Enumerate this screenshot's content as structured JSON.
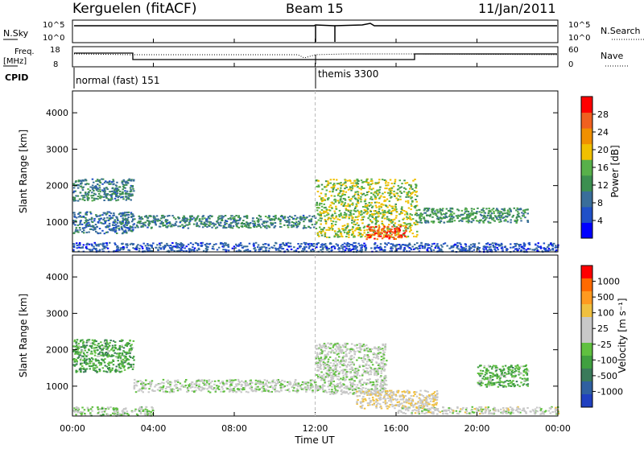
{
  "header": {
    "title": "Kerguelen (fitACF)",
    "beam": "Beam 15",
    "date": "11/Jan/2011"
  },
  "panels": {
    "nsky": {
      "label": "N.Sky",
      "top_tick": "10^5",
      "bottom_tick": "10^0",
      "right_label": "N.Search",
      "right_top_tick": "10^5",
      "right_bottom_tick": "10^0"
    },
    "freq": {
      "label_line1": "Freq.",
      "label_line2": "[MHz]",
      "top_tick": "18",
      "bottom_tick": "8",
      "right_label": "Nave",
      "right_top_tick": "60",
      "right_bottom_tick": "0"
    },
    "cpid": {
      "label": "CPID",
      "mode1": "normal (fast) 151",
      "mode2": "themis 3300"
    }
  },
  "colors": {
    "power_scale": [
      "#0000ff",
      "#2050c8",
      "#3a6e9a",
      "#3c8f50",
      "#58b04a",
      "#f0c000",
      "#f09000",
      "#f06020",
      "#ff0000"
    ],
    "velocity_scale": [
      "#ff0000",
      "#ff6a00",
      "#ff9a20",
      "#f0c040",
      "#c8c8c8",
      "#c8c8c8",
      "#60c040",
      "#40a040",
      "#3a7a5a",
      "#3060a0",
      "#2040c0"
    ]
  },
  "chart_data": [
    {
      "type": "heatmap",
      "title": "",
      "xlabel": "Time UT",
      "ylabel": "Slant Range [km]",
      "xlim": [
        "00:00",
        "24:00"
      ],
      "ylim": [
        180,
        4600
      ],
      "x_ticks": [
        "00:00",
        "04:00",
        "08:00",
        "12:00",
        "16:00",
        "20:00",
        "00:00"
      ],
      "y_ticks": [
        1000,
        2000,
        3000,
        4000
      ],
      "colorbar": {
        "label": "Power [dB]",
        "ticks": [
          "4",
          "8",
          "12",
          "16",
          "20",
          "24",
          "28"
        ],
        "range": [
          0,
          30
        ]
      },
      "echo_regions": [
        {
          "t_start": 0.0,
          "t_end": 3.0,
          "r_min": 1600,
          "r_max": 2200,
          "value": 10
        },
        {
          "t_start": 0.0,
          "t_end": 3.0,
          "r_min": 700,
          "r_max": 1300,
          "value": 8
        },
        {
          "t_start": 3.0,
          "t_end": 12.0,
          "r_min": 850,
          "r_max": 1200,
          "value": 10
        },
        {
          "t_start": 12.0,
          "t_end": 17.0,
          "r_min": 600,
          "r_max": 2200,
          "value": 16
        },
        {
          "t_start": 14.5,
          "t_end": 16.5,
          "r_min": 550,
          "r_max": 900,
          "value": 26
        },
        {
          "t_start": 17.0,
          "t_end": 22.5,
          "r_min": 1000,
          "r_max": 1400,
          "value": 12
        },
        {
          "t_start": 0.0,
          "t_end": 24.0,
          "r_min": 200,
          "r_max": 450,
          "value": 6
        }
      ]
    },
    {
      "type": "heatmap",
      "title": "",
      "xlabel": "Time UT",
      "ylabel": "Slant Range [km]",
      "xlim": [
        "00:00",
        "24:00"
      ],
      "ylim": [
        180,
        4600
      ],
      "x_ticks": [
        "00:00",
        "04:00",
        "08:00",
        "12:00",
        "16:00",
        "20:00",
        "00:00"
      ],
      "y_ticks": [
        1000,
        2000,
        3000,
        4000
      ],
      "colorbar": {
        "label": "Velocity [m s⁻¹]",
        "ticks": [
          "1000",
          "500",
          "100",
          "25",
          "-25",
          "-100",
          "-500",
          "-1000"
        ],
        "range": [
          -1000,
          1000
        ]
      },
      "echo_regions": [
        {
          "t_start": 0.0,
          "t_end": 3.0,
          "r_min": 1400,
          "r_max": 2300,
          "value": -300
        },
        {
          "t_start": 3.0,
          "t_end": 12.0,
          "r_min": 850,
          "r_max": 1200,
          "value": 0
        },
        {
          "t_start": 12.0,
          "t_end": 15.5,
          "r_min": 800,
          "r_max": 2200,
          "value": 0
        },
        {
          "t_start": 14.0,
          "t_end": 18.0,
          "r_min": 400,
          "r_max": 900,
          "value": 200
        },
        {
          "t_start": 16.0,
          "t_end": 24.0,
          "r_min": 250,
          "r_max": 450,
          "value": 80
        },
        {
          "t_start": 20.0,
          "t_end": 22.5,
          "r_min": 1000,
          "r_max": 1600,
          "value": -250
        },
        {
          "t_start": 0.0,
          "t_end": 4.0,
          "r_min": 200,
          "r_max": 450,
          "value": -80
        }
      ]
    }
  ]
}
